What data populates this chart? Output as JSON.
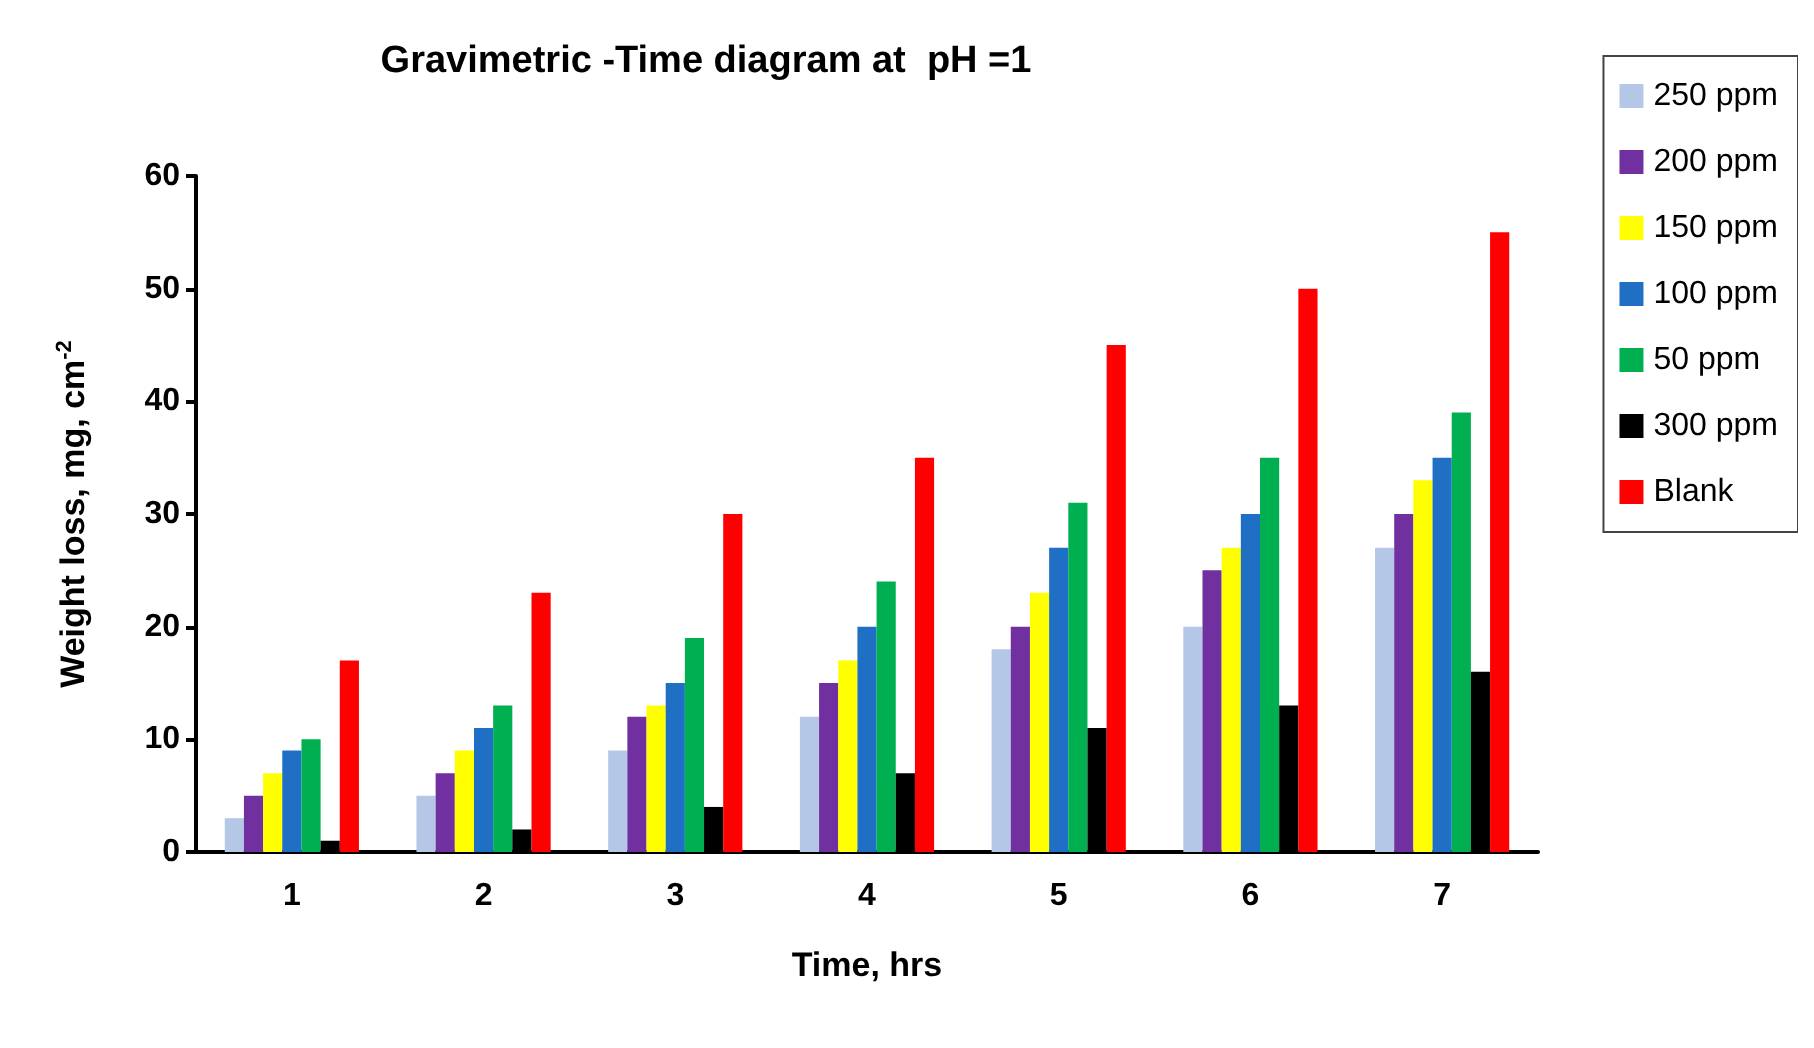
{
  "chart_data": {
    "type": "bar",
    "title": "Gravimetric -Time diagram at  pH =1",
    "xlabel": "Time, hrs",
    "ylabel": "Weight loss, mg, cm$^{-2}$",
    "categories": [
      "1",
      "2",
      "3",
      "4",
      "5",
      "6",
      "7"
    ],
    "series": [
      {
        "name": "250 ppm",
        "color": "#b4c7e7",
        "values": [
          3,
          5,
          9,
          12,
          18,
          20,
          27
        ]
      },
      {
        "name": "200 ppm",
        "color": "#7030a0",
        "values": [
          5,
          7,
          12,
          15,
          20,
          25,
          30
        ]
      },
      {
        "name": "150 ppm",
        "color": "#ffff00",
        "values": [
          7,
          9,
          13,
          17,
          23,
          27,
          33
        ]
      },
      {
        "name": "100 ppm",
        "color": "#1f6fc5",
        "values": [
          9,
          11,
          15,
          20,
          27,
          30,
          35
        ]
      },
      {
        "name": "50 ppm",
        "color": "#00b050",
        "values": [
          10,
          13,
          19,
          24,
          31,
          35,
          39
        ]
      },
      {
        "name": "300 ppm",
        "color": "#000000",
        "values": [
          1,
          2,
          4,
          7,
          11,
          13,
          16
        ]
      },
      {
        "name": "Blank",
        "color": "#ff0000",
        "values": [
          17,
          23,
          30,
          35,
          45,
          50,
          55
        ]
      }
    ],
    "ylim": [
      0,
      60
    ],
    "yticks": [
      0,
      10,
      20,
      30,
      40,
      50,
      60
    ],
    "grid": false,
    "legend": "top right"
  }
}
